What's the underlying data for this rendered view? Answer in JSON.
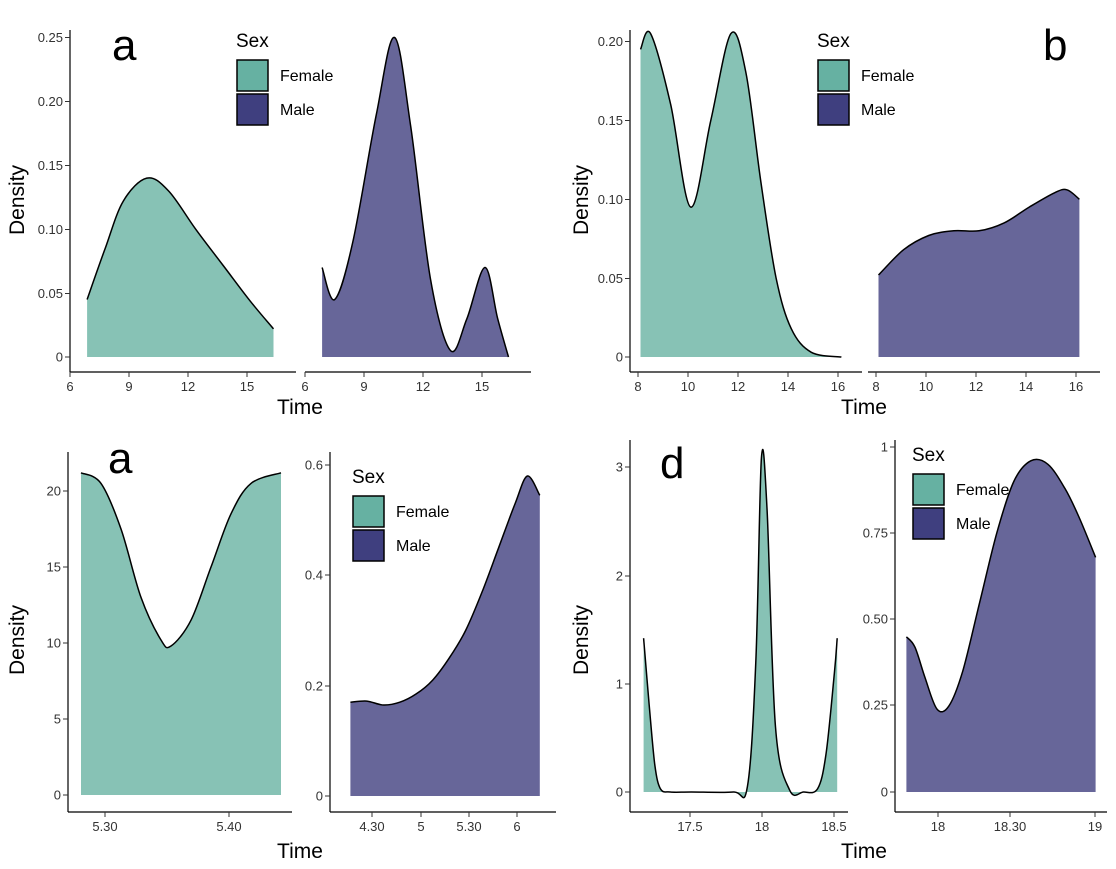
{
  "colors": {
    "female": "#87c2b5",
    "male": "#676699",
    "female_key": "#66b1a2",
    "male_key": "#3f3f7f",
    "outline": "#000000"
  },
  "chart_data": [
    {
      "type": "area",
      "letter": "a",
      "xlabel": "Time",
      "ylabel": "Density",
      "legend": {
        "title": "Sex",
        "items": [
          "Female",
          "Male"
        ],
        "placement": "top-center"
      },
      "facets": [
        {
          "series": "Female",
          "xlim": [
            6.0,
            17.6
          ],
          "ylim": [
            0,
            0.25
          ],
          "x": [
            6.5,
            7.5,
            8.5,
            9.8,
            11.0,
            12.5,
            14.0,
            15.5,
            16.8
          ],
          "y": [
            0.045,
            0.085,
            0.122,
            0.14,
            0.13,
            0.1,
            0.072,
            0.044,
            0.022
          ]
        },
        {
          "series": "Male",
          "xlim": [
            6.0,
            17.6
          ],
          "ylim": [
            0,
            0.25
          ],
          "x": [
            6.5,
            7.2,
            8.2,
            9.5,
            10.5,
            11.4,
            12.5,
            13.6,
            14.5,
            15.5,
            16.2,
            16.8
          ],
          "y": [
            0.07,
            0.045,
            0.09,
            0.19,
            0.25,
            0.18,
            0.06,
            0.005,
            0.03,
            0.07,
            0.03,
            0.0
          ]
        }
      ],
      "x_ticks": [
        "6",
        "9",
        "12",
        "15"
      ],
      "y_ticks": [
        "0",
        "0.05",
        "0.10",
        "0.15",
        "0.20",
        "0.25"
      ]
    },
    {
      "type": "area",
      "letter": "b",
      "xlabel": "Time",
      "ylabel": "Density",
      "legend": {
        "title": "Sex",
        "items": [
          "Female",
          "Male"
        ],
        "placement": "top-center"
      },
      "facets": [
        {
          "series": "Female",
          "xlim": [
            7.9,
            16.5
          ],
          "ylim": [
            0,
            0.2
          ],
          "x": [
            8.0,
            8.4,
            9.2,
            10.0,
            10.8,
            11.6,
            12.2,
            12.8,
            13.4,
            14.0,
            14.8,
            16.0
          ],
          "y": [
            0.195,
            0.205,
            0.16,
            0.095,
            0.15,
            0.205,
            0.18,
            0.11,
            0.05,
            0.018,
            0.003,
            0.0
          ]
        },
        {
          "series": "Male",
          "xlim": [
            7.9,
            16.5
          ],
          "ylim": [
            0,
            0.2
          ],
          "x": [
            8.0,
            9.0,
            10.0,
            11.0,
            12.0,
            13.0,
            14.0,
            15.0,
            15.5,
            16.0
          ],
          "y": [
            0.052,
            0.068,
            0.077,
            0.08,
            0.08,
            0.085,
            0.095,
            0.104,
            0.106,
            0.1
          ]
        }
      ],
      "x_ticks": [
        "8",
        "10",
        "12",
        "14",
        "16"
      ],
      "y_ticks": [
        "0",
        "0.05",
        "0.10",
        "0.15",
        "0.20"
      ]
    },
    {
      "type": "area",
      "letter": "a",
      "xlabel": "Time",
      "ylabel": "Density",
      "legend": {
        "title": "Sex",
        "items": [
          "Female",
          "Male"
        ],
        "placement": "top-right"
      },
      "facets": [
        {
          "series": "Female",
          "xlim": [
            5.275,
            5.483
          ],
          "ylim": [
            0,
            21.5
          ],
          "y_ticks": [
            "0",
            "5",
            "10",
            "15",
            "20"
          ],
          "x_ticks": [
            "5.30",
            "5.40"
          ],
          "x": [
            5.28,
            5.3,
            5.32,
            5.34,
            5.36,
            5.37,
            5.39,
            5.41,
            5.43,
            5.45,
            5.48
          ],
          "y": [
            21.2,
            20.5,
            17.5,
            13.0,
            10.2,
            9.8,
            11.5,
            15.0,
            18.5,
            20.5,
            21.2
          ]
        },
        {
          "series": "Male",
          "xlim": [
            3.85,
            6.4
          ],
          "ylim": [
            0,
            0.6
          ],
          "y_ticks": [
            "0",
            "0.2",
            "0.4",
            "0.6"
          ],
          "x_ticks": [
            "4.30",
            "5",
            "5.30",
            "6"
          ],
          "x": [
            4.0,
            4.2,
            4.4,
            4.6,
            4.8,
            5.0,
            5.2,
            5.4,
            5.6,
            5.8,
            6.0,
            6.15,
            6.3
          ],
          "y": [
            0.17,
            0.172,
            0.165,
            0.17,
            0.185,
            0.21,
            0.25,
            0.3,
            0.37,
            0.45,
            0.53,
            0.58,
            0.545
          ]
        }
      ]
    },
    {
      "type": "area",
      "letter": "d",
      "xlabel": "Time",
      "ylabel": "Density",
      "legend": {
        "title": "Sex",
        "items": [
          "Female",
          "Male"
        ],
        "placement": "top-left"
      },
      "facets": [
        {
          "series": "Female",
          "xlim": [
            17.12,
            18.56
          ],
          "ylim": [
            0,
            3.1
          ],
          "y_ticks": [
            "0",
            "1",
            "2",
            "3"
          ],
          "x_ticks": [
            "17.5",
            "18",
            "18.5"
          ],
          "x": [
            17.16,
            17.2,
            17.24,
            17.28,
            17.35,
            17.5,
            17.8,
            17.9,
            17.96,
            18.0,
            18.04,
            18.1,
            18.2,
            18.3,
            18.4,
            18.46,
            18.52,
            18.54
          ],
          "y": [
            1.42,
            0.8,
            0.25,
            0.03,
            0.0,
            0.0,
            0.0,
            0.05,
            1.2,
            3.08,
            2.6,
            0.6,
            0.02,
            0.0,
            0.03,
            0.35,
            1.1,
            1.42
          ]
        },
        {
          "series": "Male",
          "xlim": [
            17.85,
            19.0
          ],
          "ylim": [
            0,
            1.0
          ],
          "y_ticks": [
            "0",
            "0.25",
            "0.50",
            "0.75",
            "1"
          ],
          "x_ticks": [
            "18",
            "18.30",
            "19"
          ],
          "x": [
            17.87,
            17.92,
            17.98,
            18.05,
            18.12,
            18.2,
            18.3,
            18.4,
            18.5,
            18.6,
            18.7,
            18.8,
            18.88,
            18.98
          ],
          "y": [
            0.45,
            0.42,
            0.33,
            0.24,
            0.25,
            0.35,
            0.55,
            0.75,
            0.9,
            0.96,
            0.95,
            0.88,
            0.8,
            0.68
          ]
        }
      ]
    }
  ]
}
